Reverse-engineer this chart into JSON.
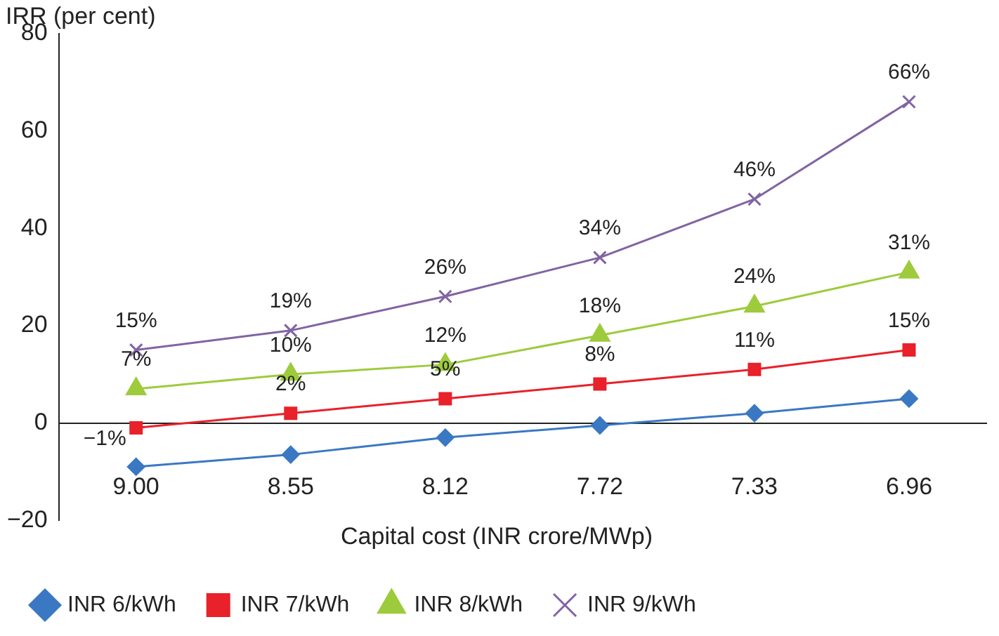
{
  "chart_data": {
    "type": "line",
    "xlabel": "Capital cost (INR crore/MWp)",
    "ylabel": "IRR (per cent)",
    "categories": [
      "9.00",
      "8.55",
      "8.12",
      "7.72",
      "7.33",
      "6.96"
    ],
    "ylim": [
      -20,
      80
    ],
    "yticks": [
      -20,
      0,
      20,
      40,
      60,
      80
    ],
    "grid": false,
    "legend": "bottom",
    "line_style": "solid",
    "series": [
      {
        "name": "INR 6/kWh",
        "color": "#3a78c3",
        "marker": "diamond",
        "values": [
          -9,
          -6.5,
          -3,
          -0.5,
          2,
          5
        ]
      },
      {
        "name": "INR 7/kWh",
        "color": "#e8212a",
        "marker": "square",
        "values": [
          -1,
          2,
          5,
          8,
          11,
          15
        ],
        "value_labels": [
          "−1%",
          "2%",
          "5%",
          "8%",
          "11%",
          "15%"
        ]
      },
      {
        "name": "INR 8/kWh",
        "color": "#9dcb3c",
        "marker": "triangle",
        "values": [
          7,
          10,
          12,
          18,
          24,
          31
        ],
        "value_labels": [
          "7%",
          "10%",
          "12%",
          "18%",
          "24%",
          "31%"
        ]
      },
      {
        "name": "INR 9/kWh",
        "color": "#8064a2",
        "marker": "cross",
        "values": [
          15,
          19,
          26,
          34,
          46,
          66
        ],
        "value_labels": [
          "15%",
          "19%",
          "26%",
          "34%",
          "46%",
          "66%"
        ]
      }
    ]
  }
}
